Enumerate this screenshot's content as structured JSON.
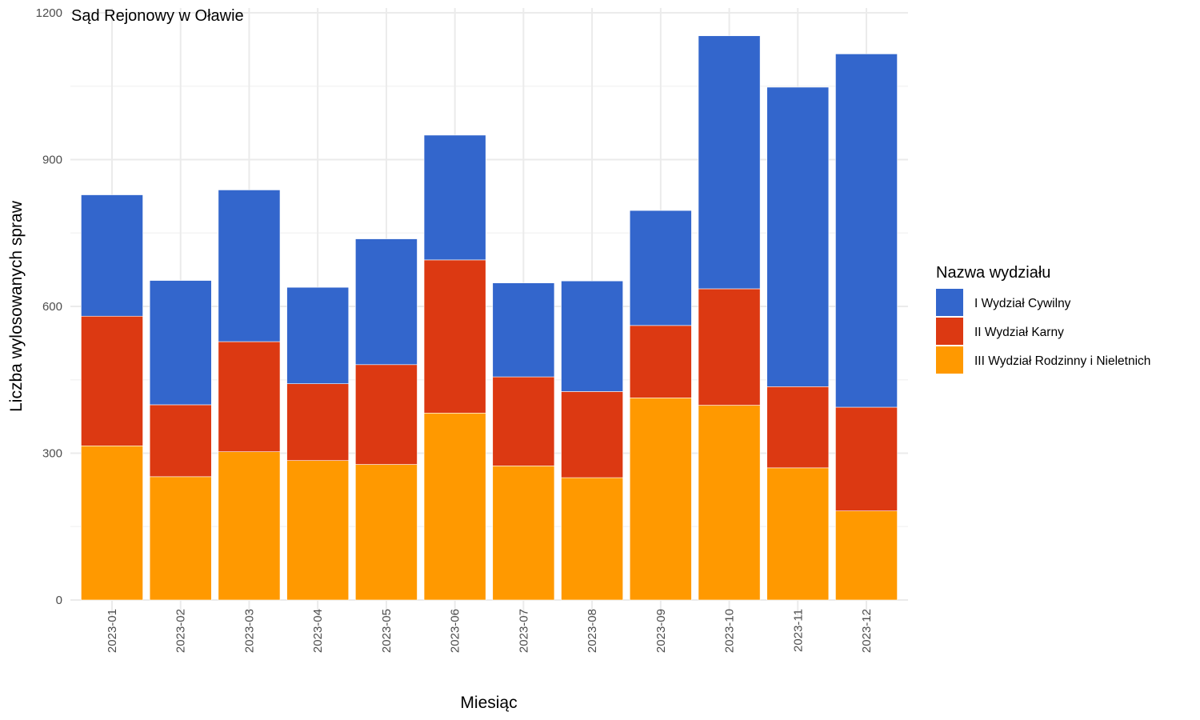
{
  "chart_data": {
    "type": "bar",
    "stacked": true,
    "title": "Sąd Rejonowy w Oławie",
    "xlabel": "Miesiąc",
    "ylabel": "Liczba wylosowanych spraw",
    "ylim": [
      0,
      1200
    ],
    "yticks": [
      "0",
      "300",
      "600",
      "900",
      "1200"
    ],
    "grid": true,
    "legend_position": "right",
    "legend_title": "Nazwa wydziału",
    "categories": [
      "2023-01",
      "2023-02",
      "2023-03",
      "2023-04",
      "2023-05",
      "2023-06",
      "2023-07",
      "2023-08",
      "2023-09",
      "2023-10",
      "2023-11",
      "2023-12"
    ],
    "series": [
      {
        "name": "III Wydział Rodzinny i Nieletnich",
        "color": "#FF9900",
        "values": [
          315,
          252,
          303,
          285,
          277,
          382,
          274,
          250,
          413,
          398,
          270,
          182
        ]
      },
      {
        "name": "II Wydział Karny",
        "color": "#DC3912",
        "values": [
          265,
          147,
          225,
          157,
          204,
          313,
          182,
          176,
          148,
          238,
          166,
          212
        ]
      },
      {
        "name": "I Wydział Cywilny",
        "color": "#3366CC",
        "values": [
          248,
          254,
          310,
          197,
          257,
          255,
          192,
          226,
          235,
          517,
          612,
          722
        ]
      }
    ],
    "legend_order": [
      "I Wydział Cywilny",
      "II Wydział Karny",
      "III Wydział Rodzinny i Nieletnich"
    ]
  }
}
